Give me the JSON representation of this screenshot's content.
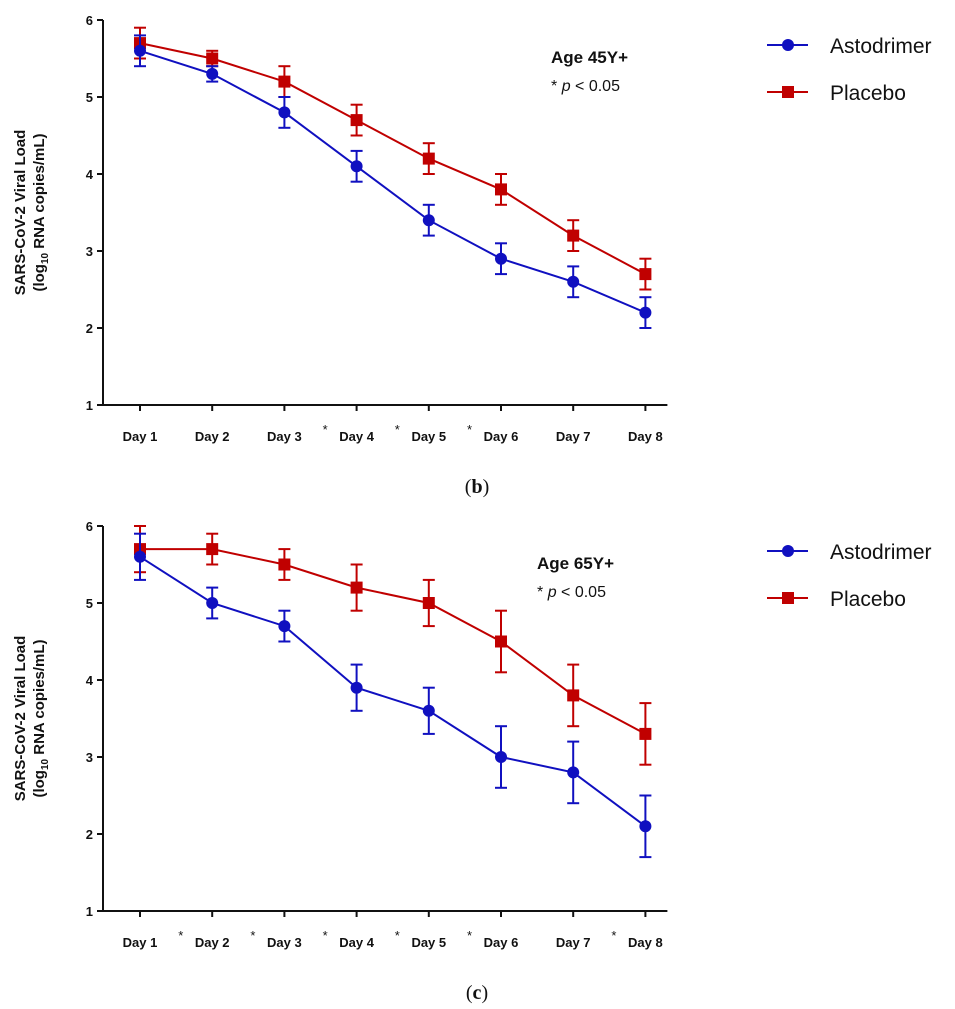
{
  "colors": {
    "astodrimer": "#1010c0",
    "placebo": "#c00000",
    "axis": "#111111"
  },
  "chart_data": [
    {
      "type": "line",
      "panel_label": "b",
      "annotation": {
        "title": "Age 45Y+",
        "star": "*",
        "p_italic": "p",
        "p_rest": " < 0.05"
      },
      "ylabel_line1": "SARS-CoV-2 Viral Load",
      "ylabel_line2_pre": "(log",
      "ylabel_line2_sub": "10",
      "ylabel_line2_post": " RNA copies/mL)",
      "categories": [
        "Day 1",
        "Day 2",
        "Day 3",
        "Day 4",
        "Day 5",
        "Day 6",
        "Day 7",
        "Day 8"
      ],
      "significant": [
        false,
        false,
        false,
        true,
        true,
        true,
        false,
        false
      ],
      "ylim": [
        1,
        6
      ],
      "yticks": [
        1,
        2,
        3,
        4,
        5,
        6
      ],
      "legend_position": "right",
      "series": [
        {
          "name": "Astodrimer",
          "marker": "circle",
          "values": [
            5.6,
            5.3,
            4.8,
            4.1,
            3.4,
            2.9,
            2.6,
            2.2
          ],
          "errors": [
            0.2,
            0.1,
            0.2,
            0.2,
            0.2,
            0.2,
            0.2,
            0.2
          ]
        },
        {
          "name": "Placebo",
          "marker": "square",
          "values": [
            5.7,
            5.5,
            5.2,
            4.7,
            4.2,
            3.8,
            3.2,
            2.7
          ],
          "errors": [
            0.2,
            0.1,
            0.2,
            0.2,
            0.2,
            0.2,
            0.2,
            0.2
          ]
        }
      ]
    },
    {
      "type": "line",
      "panel_label": "c",
      "annotation": {
        "title": "Age 65Y+",
        "star": "*",
        "p_italic": "p",
        "p_rest": " < 0.05"
      },
      "ylabel_line1": "SARS-CoV-2 Viral Load",
      "ylabel_line2_pre": "(log",
      "ylabel_line2_sub": "10",
      "ylabel_line2_post": " RNA copies/mL)",
      "categories": [
        "Day 1",
        "Day 2",
        "Day 3",
        "Day 4",
        "Day 5",
        "Day 6",
        "Day 7",
        "Day 8"
      ],
      "significant": [
        false,
        true,
        true,
        true,
        true,
        true,
        false,
        true
      ],
      "ylim": [
        1,
        6
      ],
      "yticks": [
        1,
        2,
        3,
        4,
        5,
        6
      ],
      "legend_position": "right",
      "series": [
        {
          "name": "Astodrimer",
          "marker": "circle",
          "values": [
            5.6,
            5.0,
            4.7,
            3.9,
            3.6,
            3.0,
            2.8,
            2.1
          ],
          "errors": [
            0.3,
            0.2,
            0.2,
            0.3,
            0.3,
            0.4,
            0.4,
            0.4
          ]
        },
        {
          "name": "Placebo",
          "marker": "square",
          "values": [
            5.7,
            5.7,
            5.5,
            5.2,
            5.0,
            4.5,
            3.8,
            3.3
          ],
          "errors": [
            0.3,
            0.2,
            0.2,
            0.3,
            0.3,
            0.4,
            0.4,
            0.4
          ]
        }
      ]
    }
  ]
}
